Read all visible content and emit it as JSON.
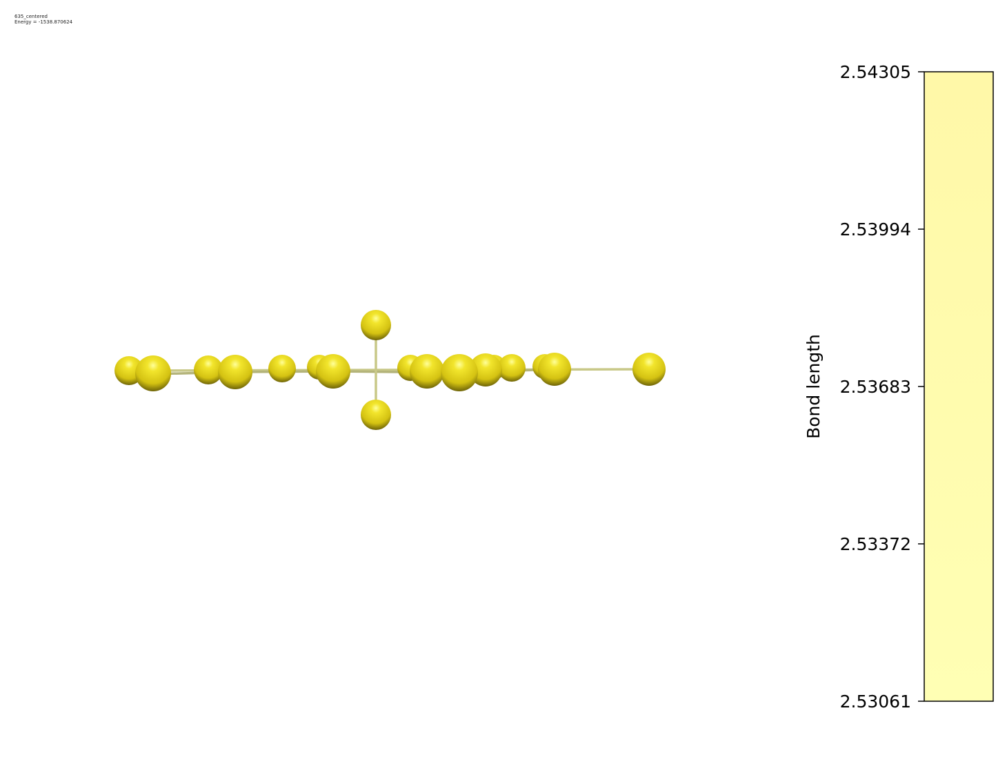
{
  "header": {
    "title": "635_centered",
    "energy": "Energy = -1538.870624"
  },
  "molecule": {
    "atom_color": "#e8d820",
    "bond_color": "#c8c888"
  },
  "colorbar": {
    "label": "Bond length",
    "ticks": [
      "2.54305",
      "2.53994",
      "2.53683",
      "2.53372",
      "2.53061"
    ],
    "fill_top": "#fff8a8",
    "fill_bottom": "#ffffb4"
  }
}
